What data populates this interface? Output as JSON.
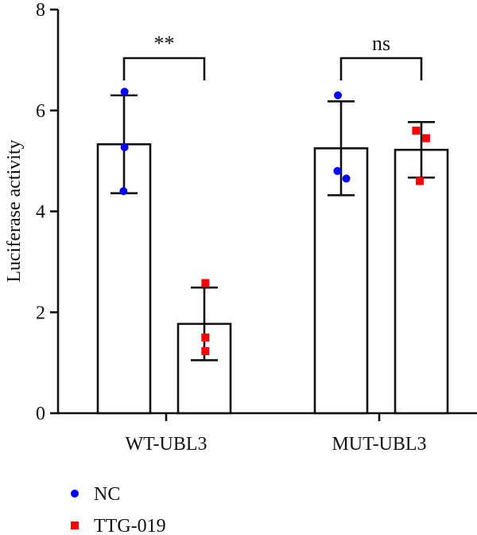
{
  "chart_data": {
    "type": "bar",
    "title": "",
    "xlabel": "",
    "ylabel": "Luciferase activity",
    "ylim": [
      0,
      8
    ],
    "yticks": [
      0,
      2,
      4,
      6,
      8
    ],
    "grid": false,
    "legend_position": "bottom-left",
    "categories": [
      "WT-UBL3",
      "MUT-UBL3"
    ],
    "series": [
      {
        "name": "NC",
        "color": "#0000ff",
        "marker": "circle",
        "means": [
          5.33,
          5.25
        ],
        "errors": [
          0.97,
          0.93
        ],
        "points": [
          [
            6.37,
            5.27,
            4.4
          ],
          [
            6.3,
            4.8,
            4.65
          ]
        ]
      },
      {
        "name": "TTG-019",
        "color": "#ff0000",
        "marker": "square",
        "means": [
          1.77,
          5.22
        ],
        "errors": [
          0.72,
          0.55
        ],
        "points": [
          [
            2.58,
            1.5,
            1.23
          ],
          [
            5.6,
            5.45,
            4.6
          ]
        ]
      }
    ],
    "annotations": [
      {
        "category": "WT-UBL3",
        "text": "**"
      },
      {
        "category": "MUT-UBL3",
        "text": "ns"
      }
    ]
  }
}
